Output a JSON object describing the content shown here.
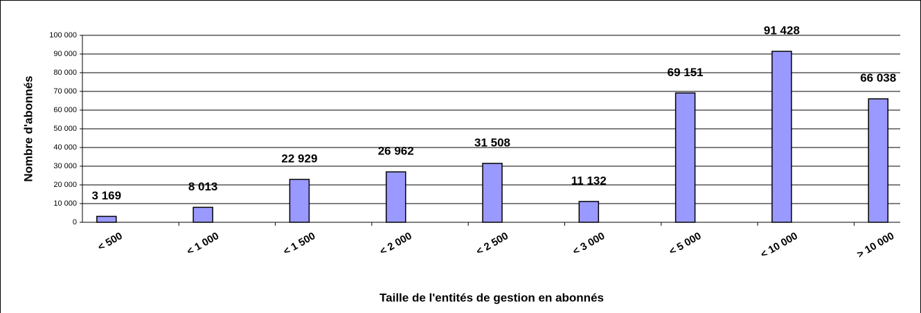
{
  "chart_data": {
    "type": "bar",
    "x_label": "Taille de l'entités de gestion en abonnés",
    "y_label": "Nombre d'abonnés",
    "categories": [
      "< 500",
      "< 1 000",
      "< 1 500",
      "< 2 000",
      "< 2 500",
      "< 3 000",
      "< 5 000",
      "< 10 000",
      "> 10 000"
    ],
    "values": [
      3169,
      8013,
      22929,
      26962,
      31508,
      11132,
      69151,
      91428,
      66038
    ],
    "value_labels": [
      "3 169",
      "8 013",
      "22 929",
      "26 962",
      "31 508",
      "11 132",
      "69 151",
      "91 428",
      "66 038"
    ],
    "color": "#9999ff",
    "ylim": [
      0,
      100000
    ],
    "yticks": [
      0,
      {
        "value": 10000,
        "label": "10 000"
      },
      {
        "value": 20000,
        "label": "20 000"
      },
      {
        "value": 30000,
        "label": "30 000"
      },
      {
        "value": 40000,
        "label": "40 000"
      },
      {
        "value": 50000,
        "label": "50 000"
      },
      {
        "value": 60000,
        "label": "60 000"
      },
      {
        "value": 70000,
        "label": "70 000"
      },
      {
        "value": 80000,
        "label": "80 000"
      },
      {
        "value": 90000,
        "label": "90 000"
      },
      {
        "value": 100000,
        "label": "100 000"
      }
    ],
    "grid": true
  }
}
